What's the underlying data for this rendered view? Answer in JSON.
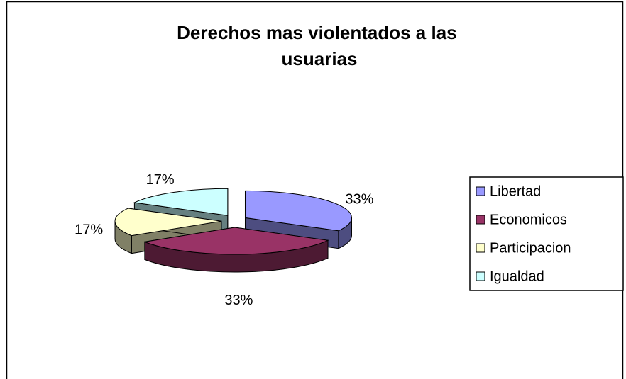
{
  "chart_data": {
    "type": "pie3d",
    "title": "Derechos mas violentados a las usuarias",
    "categories": [
      "Libertad",
      "Economicos",
      "Participacion",
      "Igualdad"
    ],
    "values": [
      33,
      33,
      17,
      17
    ],
    "value_labels": [
      "33%",
      "33%",
      "17%",
      "17%"
    ],
    "colors": [
      "#9999ff",
      "#993366",
      "#ffffcc",
      "#ccffff"
    ],
    "legend": "right"
  }
}
